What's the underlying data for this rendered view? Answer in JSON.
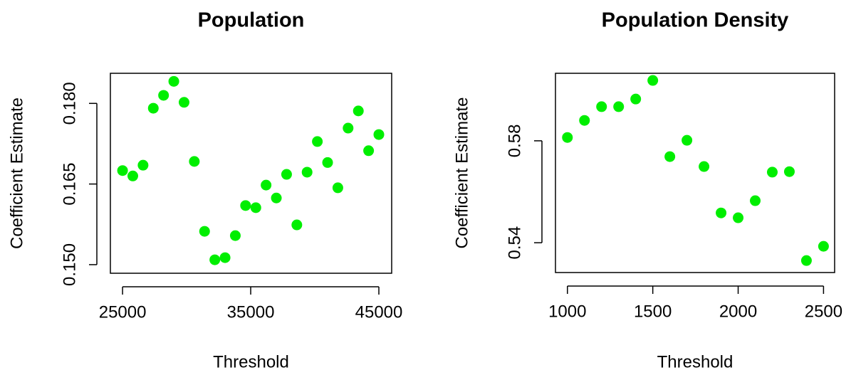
{
  "chart_data": [
    {
      "type": "scatter",
      "title": "Population",
      "x_label": "Threshold",
      "y_label": "Coefficient Estimate",
      "color": "#00ee00",
      "x": [
        25000,
        25800,
        26600,
        27400,
        28200,
        29000,
        29800,
        30600,
        31400,
        32200,
        33000,
        33800,
        34600,
        35400,
        36200,
        37000,
        37800,
        38600,
        39400,
        40200,
        41000,
        41800,
        42600,
        43400,
        44200,
        45000
      ],
      "values": [
        0.1675,
        0.1665,
        0.1685,
        0.1791,
        0.1815,
        0.1841,
        0.1802,
        0.1692,
        0.1562,
        0.1509,
        0.1513,
        0.1554,
        0.161,
        0.1606,
        0.1648,
        0.1624,
        0.1668,
        0.1574,
        0.1672,
        0.1729,
        0.169,
        0.1643,
        0.1754,
        0.1786,
        0.1712,
        0.1742
      ],
      "xlim": [
        24050,
        46000
      ],
      "xticks": [
        25000,
        35000,
        45000
      ],
      "ylim": [
        0.1484,
        0.1856
      ],
      "yticks": [
        {
          "value": 0.15,
          "label": "0.150"
        },
        0.165,
        {
          "value": 0.18,
          "label": "0.180"
        }
      ]
    },
    {
      "type": "scatter",
      "title": "Population Density",
      "x_label": "Threshold",
      "y_label": "Coefficient Estimate",
      "color": "#00ee00",
      "x": [
        1000,
        1100,
        1200,
        1300,
        1400,
        1500,
        1600,
        1700,
        1800,
        1900,
        2000,
        2100,
        2200,
        2300,
        2400,
        2500
      ],
      "values": [
        0.5813,
        0.588,
        0.5934,
        0.5934,
        0.5964,
        0.6037,
        0.5738,
        0.5802,
        0.5699,
        0.5517,
        0.5498,
        0.5565,
        0.5677,
        0.5679,
        0.533,
        0.5386
      ],
      "xlim": [
        930,
        2565
      ],
      "xticks": [
        1000,
        1500,
        2000,
        2500
      ],
      "ylim": [
        0.5283,
        0.6065
      ],
      "yticks": [
        0.54,
        0.58
      ]
    }
  ]
}
